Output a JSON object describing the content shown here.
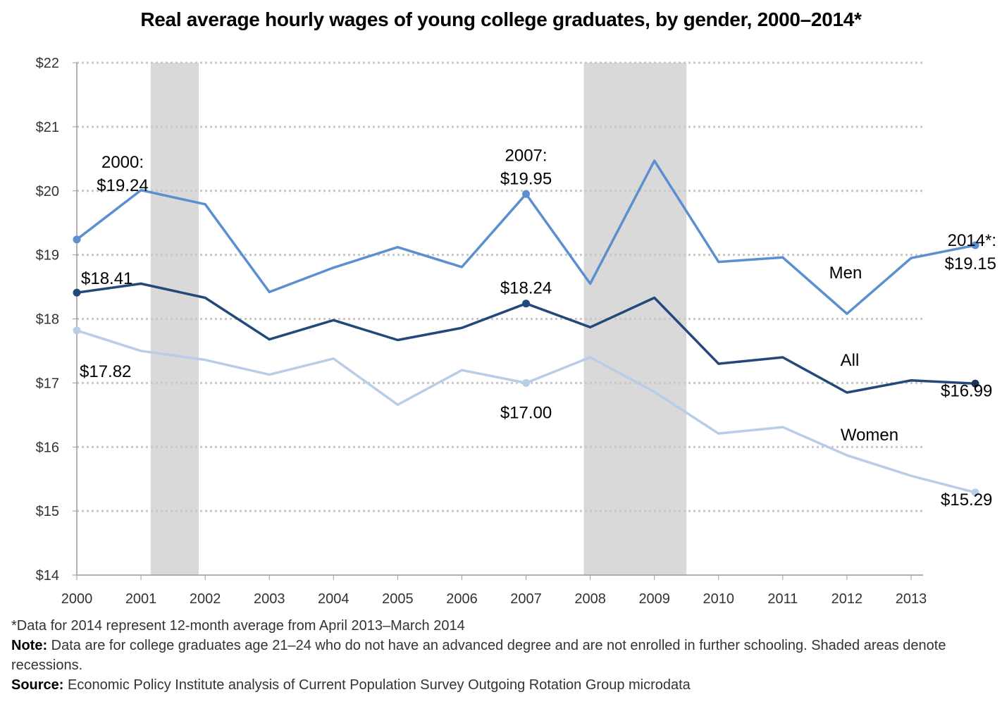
{
  "chart_data": {
    "type": "line",
    "title": "Real average hourly wages of young college graduates, by gender, 2000–2014*",
    "x": [
      2000,
      2001,
      2002,
      2003,
      2004,
      2005,
      2006,
      2007,
      2008,
      2009,
      2010,
      2011,
      2012,
      2013,
      2014
    ],
    "x_tick_labels": [
      "2000",
      "2001",
      "2002",
      "2003",
      "2004",
      "2005",
      "2006",
      "2007",
      "2008",
      "2009",
      "2010",
      "2011",
      "2012",
      "2013"
    ],
    "y_tick_labels": [
      "$14",
      "$15",
      "$16",
      "$17",
      "$18",
      "$19",
      "$20",
      "$21",
      "$22"
    ],
    "ylim": [
      14,
      22
    ],
    "grid": "horizontal dotted",
    "series": [
      {
        "name": "Men",
        "color": "#5b8fcf",
        "values": [
          19.24,
          20.01,
          19.79,
          18.42,
          18.8,
          19.12,
          18.81,
          19.95,
          18.55,
          20.47,
          18.89,
          18.96,
          18.08,
          18.95,
          19.15
        ]
      },
      {
        "name": "All",
        "color": "#22497a",
        "values": [
          18.41,
          18.55,
          18.33,
          17.68,
          17.98,
          17.67,
          17.86,
          18.24,
          17.87,
          18.33,
          17.3,
          17.4,
          16.85,
          17.04,
          16.99
        ]
      },
      {
        "name": "Women",
        "color": "#b9cde6",
        "values": [
          17.82,
          17.5,
          17.36,
          17.13,
          17.38,
          16.66,
          17.2,
          17.0,
          17.4,
          16.86,
          16.21,
          16.31,
          15.87,
          15.55,
          15.29
        ]
      }
    ],
    "recessions": [
      [
        2001.15,
        2001.9
      ],
      [
        2007.9,
        2009.5
      ]
    ],
    "annotations": [
      {
        "series": "Men",
        "x": 2000,
        "lines": [
          "2000:",
          "$19.24"
        ]
      },
      {
        "series": "Men",
        "x": 2007,
        "lines": [
          "2007:",
          "$19.95"
        ]
      },
      {
        "series": "Men",
        "x": 2014,
        "lines": [
          "2014*:",
          "$19.15"
        ]
      },
      {
        "series": "All",
        "x": 2000,
        "lines": [
          "$18.41"
        ]
      },
      {
        "series": "All",
        "x": 2007,
        "lines": [
          "$18.24"
        ]
      },
      {
        "series": "All",
        "x": 2014,
        "lines": [
          "$16.99"
        ]
      },
      {
        "series": "Women",
        "x": 2000,
        "lines": [
          "$17.82"
        ]
      },
      {
        "series": "Women",
        "x": 2007,
        "lines": [
          "$17.00"
        ]
      },
      {
        "series": "Women",
        "x": 2014,
        "lines": [
          "$15.29"
        ]
      }
    ],
    "series_labels": [
      "Men",
      "All",
      "Women"
    ]
  },
  "notes": {
    "footnote": "*Data for 2014 represent 12-month average from April 2013–March 2014",
    "note_label": "Note:",
    "note_text": " Data are for college graduates age 21–24 who do not have an advanced degree and are not enrolled in further schooling. Shaded areas denote recessions.",
    "source_label": "Source:",
    "source_text": " Economic Policy Institute analysis of Current Population Survey Outgoing Rotation Group microdata"
  }
}
